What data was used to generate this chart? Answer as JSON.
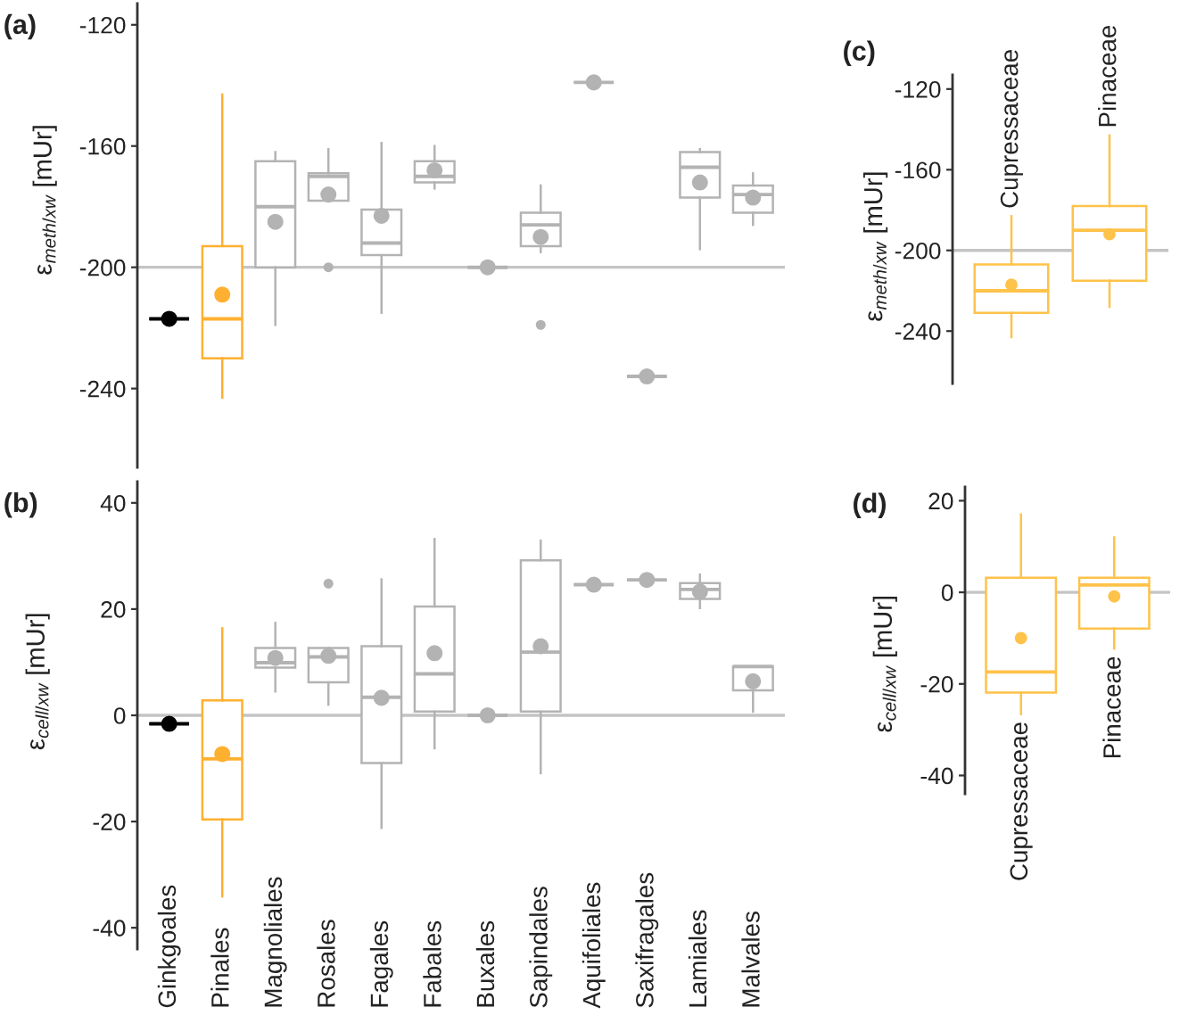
{
  "chart_data": [
    {
      "type": "box",
      "title": "(a)",
      "ylabel": "ε$_{meth/xw}$ [mUr]",
      "categories": [
        null,
        null,
        null,
        null,
        null,
        null,
        null,
        null,
        null,
        null,
        null,
        null
      ],
      "boxes": [
        {
          "low": -217,
          "q1": -217,
          "median": -217,
          "q3": -217,
          "high": -217,
          "mean": -217
        },
        {
          "low": -243,
          "q1": -230,
          "median": -217,
          "q3": -193,
          "high": -143,
          "mean": -209
        },
        {
          "low": -219,
          "q1": -200,
          "median": -180,
          "q3": -165,
          "high": -162,
          "mean": -185
        },
        {
          "low": -178,
          "q1": -178,
          "median": -170,
          "q3": -169,
          "high": -161,
          "mean": -176,
          "outliers": [
            -200
          ]
        },
        {
          "low": -215,
          "q1": -196,
          "median": -192,
          "q3": -181,
          "high": -159,
          "mean": -183
        },
        {
          "low": -174,
          "q1": -172,
          "median": -170,
          "q3": -165,
          "high": -160,
          "mean": -168
        },
        {
          "low": -200,
          "q1": -200,
          "median": -200,
          "q3": -200,
          "high": -200,
          "mean": -200
        },
        {
          "low": -195,
          "q1": -193,
          "median": -186,
          "q3": -182,
          "high": -173,
          "mean": -190,
          "outliers": [
            -219
          ]
        },
        {
          "low": -139,
          "q1": -139,
          "median": -139,
          "q3": -139,
          "high": -139,
          "mean": -139
        },
        {
          "low": -236,
          "q1": -236,
          "median": -236,
          "q3": -236,
          "high": -236,
          "mean": -236
        },
        {
          "low": -194,
          "q1": -177,
          "median": -167,
          "q3": -162,
          "high": -161,
          "mean": -172
        },
        {
          "low": -186,
          "q1": -182,
          "median": -176,
          "q3": -173,
          "high": -169,
          "mean": -177
        }
      ],
      "colors": [
        "#000000",
        "#ffb030",
        "#b3b3b3",
        "#b3b3b3",
        "#b3b3b3",
        "#b3b3b3",
        "#b3b3b3",
        "#b3b3b3",
        "#b3b3b3",
        "#b3b3b3",
        "#b3b3b3",
        "#b3b3b3"
      ],
      "ylim": [
        -266,
        -113
      ],
      "yticks": [
        -240,
        -200,
        -160,
        -120
      ],
      "ref_lines": [
        {
          "axis": "y",
          "value": -200,
          "color": "#c4c4c4"
        }
      ]
    },
    {
      "type": "box",
      "title": "(b)",
      "ylabel": "ε$_{cell/xw}$ [mUr]",
      "categories": [
        "Ginkgoales",
        "Pinales",
        "Magnoliales",
        "Rosales",
        "Fagales",
        "Fabales",
        "Buxales",
        "Sapindales",
        "Aquifoliales",
        "Saxifragales",
        "Lamiales",
        "Malvales"
      ],
      "boxes": [
        {
          "low": -1.6,
          "q1": -1.6,
          "median": -1.6,
          "q3": -1.6,
          "high": -1.6,
          "mean": -1.6
        },
        {
          "low": -34.1,
          "q1": -19.6,
          "median": -8.2,
          "q3": 2.8,
          "high": 16.4,
          "mean": -7.3
        },
        {
          "low": 4.5,
          "q1": 9.0,
          "median": 9.9,
          "q3": 12.7,
          "high": 17.4,
          "mean": 10.8
        },
        {
          "low": 2.0,
          "q1": 6.2,
          "median": 11.0,
          "q3": 12.7,
          "high": 12.7,
          "mean": 11.2,
          "outliers": [
            24.8
          ]
        },
        {
          "low": -21.2,
          "q1": -9.0,
          "median": 3.4,
          "q3": 13.0,
          "high": 25.6,
          "mean": 3.3
        },
        {
          "low": -6.2,
          "q1": 0.7,
          "median": 7.8,
          "q3": 20.5,
          "high": 33.2,
          "mean": 11.7
        },
        {
          "low": 0.0,
          "q1": 0.0,
          "median": 0.0,
          "q3": 0.0,
          "high": 0.0,
          "mean": 0.0
        },
        {
          "low": -10.9,
          "q1": 0.7,
          "median": 11.9,
          "q3": 29.2,
          "high": 32.9,
          "mean": 13.0
        },
        {
          "low": 24.6,
          "q1": 24.6,
          "median": 24.6,
          "q3": 24.6,
          "high": 24.6,
          "mean": 24.6
        },
        {
          "low": 25.5,
          "q1": 25.5,
          "median": 25.5,
          "q3": 25.5,
          "high": 25.5,
          "mean": 25.5
        },
        {
          "low": 20.2,
          "q1": 21.9,
          "median": 23.7,
          "q3": 24.9,
          "high": 26.5,
          "mean": 23.3
        },
        {
          "low": 0.7,
          "q1": 4.7,
          "median": 9.2,
          "q3": 9.2,
          "high": 9.2,
          "mean": 6.4
        }
      ],
      "colors": [
        "#000000",
        "#ffb030",
        "#b3b3b3",
        "#b3b3b3",
        "#b3b3b3",
        "#b3b3b3",
        "#b3b3b3",
        "#b3b3b3",
        "#b3b3b3",
        "#b3b3b3",
        "#b3b3b3",
        "#b3b3b3"
      ],
      "ylim": [
        -44,
        44
      ],
      "yticks": [
        -40,
        -20,
        0,
        20,
        40
      ],
      "ref_lines": [
        {
          "axis": "y",
          "value": 0,
          "color": "#c4c4c4"
        }
      ]
    },
    {
      "type": "box",
      "title": "(c)",
      "ylabel": "ε$_{meth/xw}$ [mUr]",
      "categories": [
        "Cupressaceae",
        "Pinaceae"
      ],
      "boxes": [
        {
          "low": -243,
          "q1": -231,
          "median": -220,
          "q3": -207,
          "high": -183,
          "mean": -217
        },
        {
          "low": -228,
          "q1": -215,
          "median": -190,
          "q3": -178,
          "high": -143,
          "mean": -192
        }
      ],
      "colors": [
        "#ffc24a",
        "#ffc24a"
      ],
      "ylim": [
        -266,
        -113
      ],
      "yticks": [
        -240,
        -200,
        -160,
        -120
      ],
      "ref_lines": [
        {
          "axis": "y",
          "value": -200,
          "color": "#c4c4c4"
        }
      ]
    },
    {
      "type": "box",
      "title": "(d)",
      "ylabel": "ε$_{cell/xw}$ [mUr]",
      "categories": [
        "Cupressaceae",
        "Pinaceae"
      ],
      "boxes": [
        {
          "low": -26.6,
          "q1": -21.9,
          "median": -17.4,
          "q3": 3.2,
          "high": 17.0,
          "mean": -10.0
        },
        {
          "low": -12.3,
          "q1": -7.9,
          "median": 1.6,
          "q3": 3.2,
          "high": 12.0,
          "mean": -0.9
        }
      ],
      "colors": [
        "#ffc24a",
        "#ffc24a"
      ],
      "ylim": [
        -44,
        23
      ],
      "yticks": [
        -40,
        -20,
        0,
        20
      ],
      "ref_lines": [
        {
          "axis": "y",
          "value": 0,
          "color": "#c4c4c4"
        }
      ]
    }
  ]
}
